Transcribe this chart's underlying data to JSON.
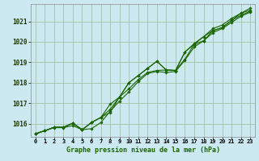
{
  "title": "Graphe pression niveau de la mer (hPa)",
  "bg_color": "#cce8f0",
  "grid_color": "#99bb99",
  "line_color": "#1a6600",
  "marker_color": "#1a6600",
  "x_labels": [
    "0",
    "1",
    "2",
    "3",
    "4",
    "5",
    "6",
    "7",
    "8",
    "9",
    "10",
    "11",
    "12",
    "13",
    "14",
    "15",
    "16",
    "17",
    "18",
    "19",
    "20",
    "21",
    "22",
    "23"
  ],
  "ylim": [
    1015.35,
    1021.85
  ],
  "yticks": [
    1016,
    1017,
    1018,
    1019,
    1020,
    1021
  ],
  "series1": [
    1015.5,
    1015.65,
    1015.8,
    1015.8,
    1015.9,
    1015.7,
    1015.75,
    1016.05,
    1016.6,
    1017.1,
    1017.55,
    1018.05,
    1018.45,
    1018.55,
    1018.5,
    1018.55,
    1019.1,
    1019.75,
    1020.05,
    1020.45,
    1020.65,
    1020.95,
    1021.25,
    1021.45
  ],
  "series2": [
    1015.5,
    1015.65,
    1015.82,
    1015.82,
    1016.02,
    1015.7,
    1016.05,
    1016.3,
    1016.55,
    1017.3,
    1017.7,
    1018.15,
    1018.5,
    1018.6,
    1018.62,
    1018.6,
    1019.15,
    1019.88,
    1020.05,
    1020.55,
    1020.7,
    1021.05,
    1021.3,
    1021.5
  ],
  "series3": [
    1015.5,
    1015.65,
    1015.82,
    1015.82,
    1016.02,
    1015.7,
    1016.05,
    1016.3,
    1016.7,
    1017.3,
    1018.0,
    1018.35,
    1018.7,
    1019.05,
    1018.62,
    1018.6,
    1019.5,
    1019.88,
    1020.25,
    1020.55,
    1020.7,
    1021.05,
    1021.4,
    1021.55
  ],
  "series4": [
    1015.5,
    1015.65,
    1015.82,
    1015.82,
    1016.02,
    1015.7,
    1016.05,
    1016.3,
    1016.95,
    1017.3,
    1018.0,
    1018.35,
    1018.7,
    1019.05,
    1018.62,
    1018.6,
    1019.5,
    1019.92,
    1020.25,
    1020.65,
    1020.82,
    1021.15,
    1021.4,
    1021.65
  ]
}
